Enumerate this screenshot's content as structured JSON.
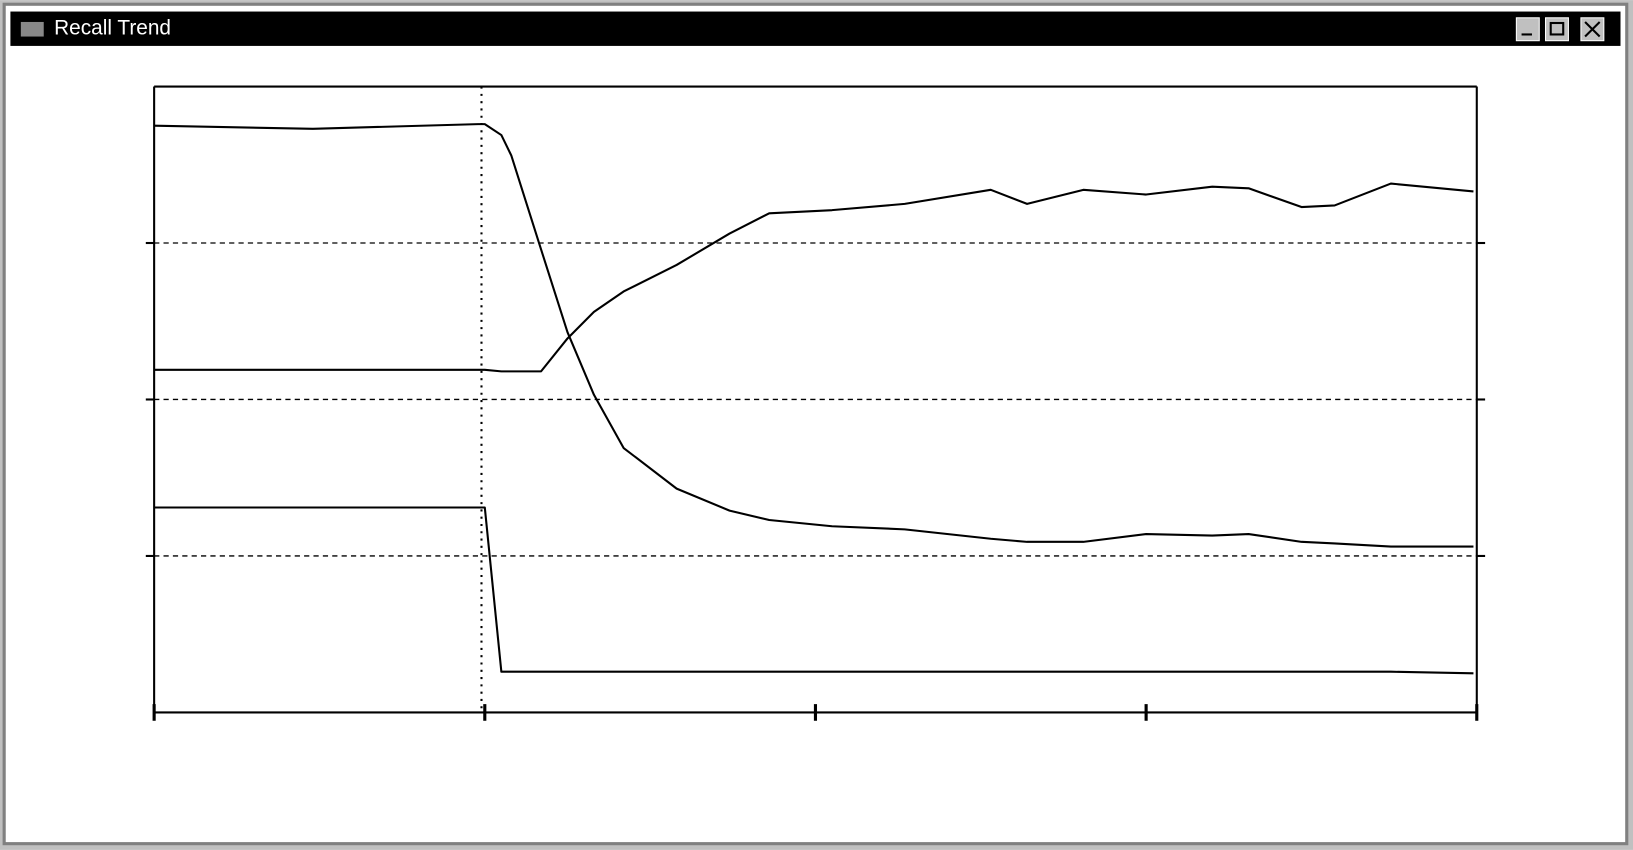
{
  "window": {
    "title": "Recall Trend"
  },
  "chart_data": {
    "type": "line",
    "x": [
      0,
      0.48,
      0.98,
      1.0,
      1.05,
      1.08,
      1.17,
      1.25,
      1.33,
      1.42,
      1.58,
      1.74,
      1.86,
      2.05,
      2.27,
      2.53,
      2.64,
      2.81,
      3.0,
      3.2,
      3.31,
      3.47,
      3.57,
      3.74,
      3.99
    ],
    "series": [
      {
        "color": "#000000",
        "values": [
          3.75,
          3.73,
          3.76,
          3.76,
          3.69,
          3.56,
          2.96,
          2.43,
          2.03,
          1.69,
          1.43,
          1.29,
          1.23,
          1.19,
          1.17,
          1.11,
          1.09,
          1.09,
          1.14,
          1.13,
          1.14,
          1.09,
          1.08,
          1.06,
          1.06
        ]
      },
      {
        "color": "#000000",
        "values": [
          2.19,
          2.19,
          2.19,
          2.19,
          2.18,
          2.18,
          2.18,
          2.39,
          2.56,
          2.69,
          2.86,
          3.06,
          3.19,
          3.21,
          3.25,
          3.34,
          3.25,
          3.34,
          3.31,
          3.36,
          3.35,
          3.23,
          3.24,
          3.38,
          3.33
        ]
      },
      {
        "color": "#000000",
        "values": [
          1.31,
          1.31,
          1.31,
          1.31,
          0.26,
          0.26,
          0.26,
          0.26,
          0.26,
          0.26,
          0.26,
          0.26,
          0.26,
          0.26,
          0.26,
          0.26,
          0.26,
          0.26,
          0.26,
          0.26,
          0.26,
          0.26,
          0.26,
          0.26,
          0.25
        ]
      }
    ],
    "xlim": [
      0,
      4
    ],
    "xticks": [
      0,
      1,
      2,
      3,
      4
    ],
    "ylim": [
      0,
      4
    ],
    "yticks": [
      1,
      2,
      3
    ],
    "grid": true,
    "cursor_x": 0.99
  }
}
